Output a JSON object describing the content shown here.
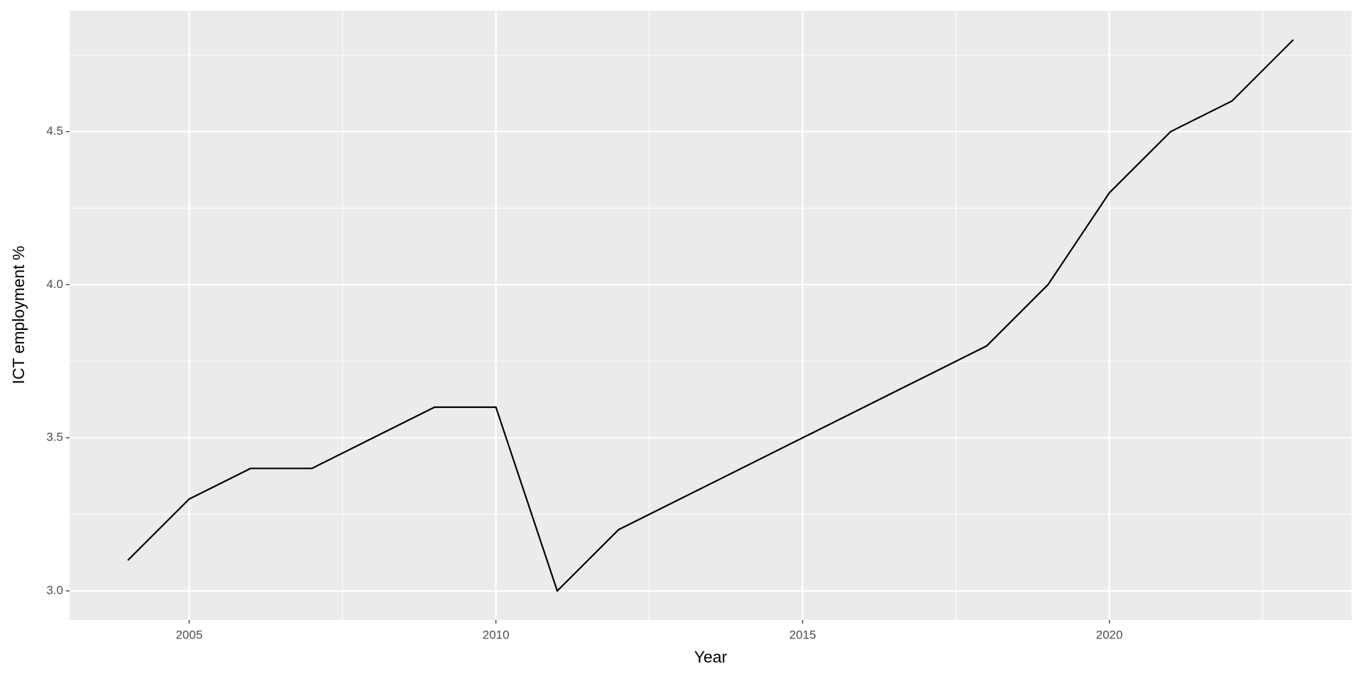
{
  "chart_data": {
    "type": "line",
    "xlabel": "Year",
    "ylabel": "ICT employment %",
    "x": [
      2004,
      2005,
      2006,
      2007,
      2008,
      2009,
      2010,
      2011,
      2012,
      2013,
      2014,
      2015,
      2016,
      2017,
      2018,
      2019,
      2020,
      2021,
      2022,
      2023
    ],
    "series": [
      {
        "color": "#000000",
        "values": [
          3.1,
          3.3,
          3.4,
          3.4,
          3.5,
          3.6,
          3.6,
          3.0,
          3.2,
          3.3,
          3.4,
          3.5,
          3.6,
          3.7,
          3.8,
          4.0,
          4.3,
          4.5,
          4.6,
          4.8
        ]
      }
    ],
    "xlim": [
      2003.05,
      2023.95
    ],
    "ylim": [
      2.905,
      4.895
    ],
    "xticks": [
      2005,
      2010,
      2015,
      2020
    ],
    "yticks": [
      {
        "value": 3,
        "label": "3.0"
      },
      3.5,
      {
        "value": 4,
        "label": "4.0"
      },
      4.5
    ],
    "xminorticks": [
      2007.5,
      2012.5,
      2017.5,
      2022.5
    ],
    "yminorticks": [
      3.25,
      3.75,
      4.25,
      4.75
    ],
    "grid": true
  }
}
